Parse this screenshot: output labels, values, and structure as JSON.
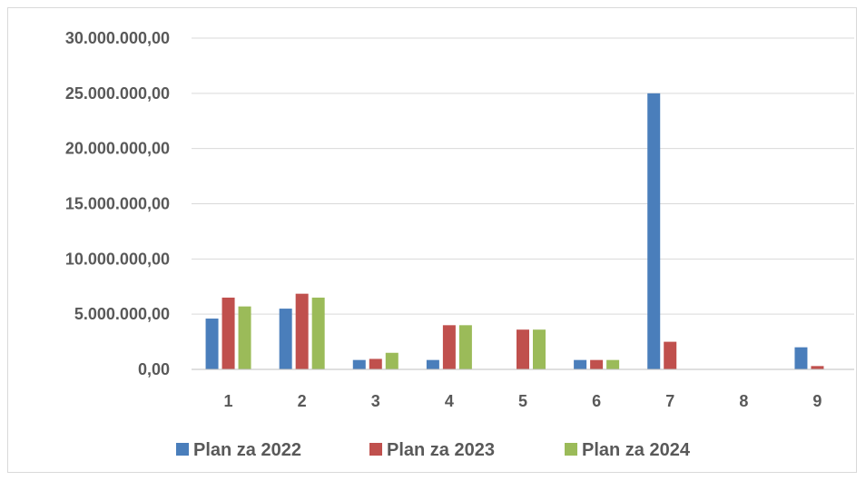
{
  "chart_data": {
    "type": "bar",
    "categories": [
      "1",
      "2",
      "3",
      "4",
      "5",
      "6",
      "7",
      "8",
      "9"
    ],
    "series": [
      {
        "name": "Plan za 2022",
        "color": "#4a7ebb",
        "values": [
          4600000,
          5500000,
          850000,
          850000,
          0,
          850000,
          25000000,
          0,
          2000000
        ]
      },
      {
        "name": "Plan za 2023",
        "color": "#c0504d",
        "values": [
          6500000,
          6850000,
          950000,
          4000000,
          3600000,
          850000,
          2500000,
          0,
          300000
        ]
      },
      {
        "name": "Plan za 2024",
        "color": "#9bbb59",
        "values": [
          5700000,
          6500000,
          1500000,
          4000000,
          3600000,
          850000,
          0,
          0,
          0
        ]
      }
    ],
    "y_ticks": [
      {
        "value": 0,
        "label": "0,00"
      },
      {
        "value": 5000000,
        "label": "5.000.000,00"
      },
      {
        "value": 10000000,
        "label": "10.000.000,00"
      },
      {
        "value": 15000000,
        "label": "15.000.000,00"
      },
      {
        "value": 20000000,
        "label": "20.000.000,00"
      },
      {
        "value": 25000000,
        "label": "25.000.000,00"
      },
      {
        "value": 30000000,
        "label": "30.000.000,00"
      }
    ],
    "ylim": [
      0,
      30000000
    ],
    "grid": true,
    "legend_position": "bottom",
    "gridline_color": "#d9d9d9",
    "axis_color": "#bfbfbf"
  }
}
